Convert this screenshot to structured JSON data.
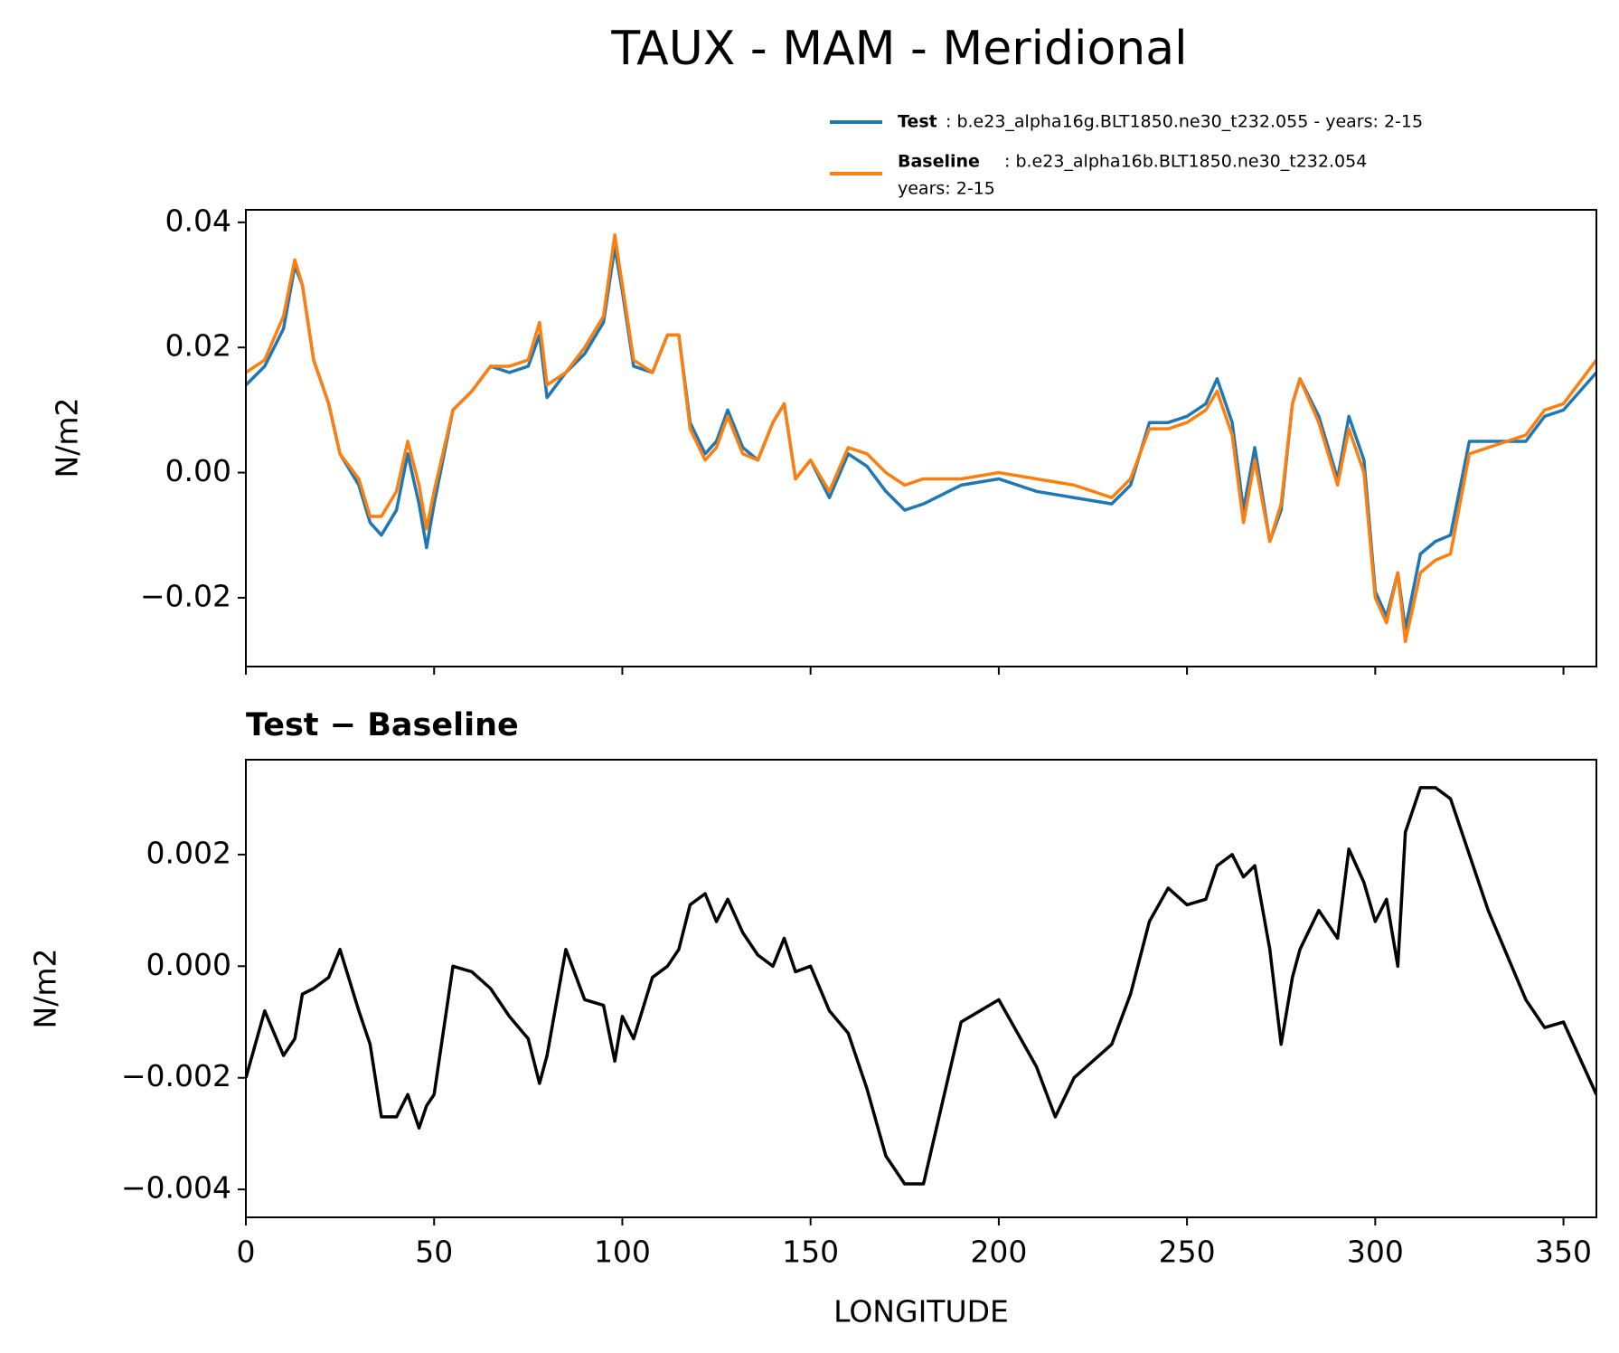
{
  "chart_data": [
    {
      "type": "line",
      "title": "TAUX - MAM - Meridional",
      "ylabel": "N/m2",
      "x": [
        0,
        5,
        10,
        13,
        15,
        18,
        22,
        25,
        30,
        33,
        36,
        40,
        43,
        46,
        48,
        50,
        55,
        60,
        65,
        70,
        75,
        78,
        80,
        85,
        90,
        95,
        98,
        100,
        103,
        108,
        112,
        115,
        118,
        122,
        125,
        128,
        132,
        136,
        140,
        143,
        146,
        150,
        155,
        160,
        165,
        170,
        175,
        180,
        190,
        200,
        210,
        220,
        230,
        235,
        240,
        245,
        250,
        255,
        258,
        262,
        265,
        268,
        272,
        275,
        278,
        280,
        285,
        290,
        293,
        297,
        300,
        303,
        306,
        308,
        312,
        316,
        320,
        325,
        330,
        340,
        345,
        350,
        358.75
      ],
      "series": [
        {
          "name": "Test",
          "description": [
            ": b.e23_alpha16g.BLT1850.ne30_t232.055 - years: 2-15"
          ],
          "color": "#1f77b4",
          "values": [
            0.014,
            0.017,
            0.023,
            0.033,
            0.03,
            0.018,
            0.011,
            0.003,
            -0.002,
            -0.008,
            -0.01,
            -0.006,
            0.003,
            -0.005,
            -0.012,
            -0.005,
            0.01,
            0.013,
            0.017,
            0.016,
            0.017,
            0.022,
            0.012,
            0.016,
            0.019,
            0.024,
            0.036,
            0.029,
            0.017,
            0.016,
            0.022,
            0.022,
            0.008,
            0.003,
            0.005,
            0.01,
            0.004,
            0.002,
            0.008,
            0.011,
            -0.001,
            0.002,
            -0.004,
            0.003,
            0.001,
            -0.003,
            -0.006,
            -0.005,
            -0.002,
            -0.001,
            -0.003,
            -0.004,
            -0.005,
            -0.002,
            0.008,
            0.008,
            0.009,
            0.011,
            0.015,
            0.008,
            -0.006,
            0.004,
            -0.011,
            -0.006,
            0.011,
            0.015,
            0.009,
            -0.001,
            0.009,
            0.002,
            -0.019,
            -0.023,
            -0.016,
            -0.025,
            -0.013,
            -0.011,
            -0.01,
            0.005,
            0.005,
            0.005,
            0.009,
            0.01,
            0.016
          ]
        },
        {
          "name": "Baseline",
          "description": [
            ": b.e23_alpha16b.BLT1850.ne30_t232.054",
            "years: 2-15"
          ],
          "color": "#ff7f0e",
          "values": [
            0.016,
            0.018,
            0.025,
            0.034,
            0.03,
            0.018,
            0.011,
            0.003,
            -0.001,
            -0.007,
            -0.007,
            -0.003,
            0.005,
            -0.002,
            -0.009,
            -0.003,
            0.01,
            0.013,
            0.017,
            0.017,
            0.018,
            0.024,
            0.014,
            0.016,
            0.02,
            0.025,
            0.038,
            0.03,
            0.018,
            0.016,
            0.022,
            0.022,
            0.007,
            0.002,
            0.004,
            0.009,
            0.003,
            0.002,
            0.008,
            0.011,
            -0.001,
            0.002,
            -0.003,
            0.004,
            0.003,
            0.0,
            -0.002,
            -0.001,
            -0.001,
            0.0,
            -0.001,
            -0.002,
            -0.004,
            -0.001,
            0.007,
            0.007,
            0.008,
            0.01,
            0.013,
            0.006,
            -0.008,
            0.002,
            -0.011,
            -0.005,
            0.011,
            0.015,
            0.008,
            -0.002,
            0.007,
            0.0,
            -0.02,
            -0.024,
            -0.016,
            -0.027,
            -0.016,
            -0.014,
            -0.013,
            0.003,
            0.004,
            0.006,
            0.01,
            0.011,
            0.018
          ]
        }
      ],
      "xlim": [
        0,
        358.75
      ],
      "xticks": [
        0,
        50,
        100,
        150,
        200,
        250,
        300,
        350
      ],
      "ylim": [
        -0.031,
        0.042
      ],
      "yticks": [
        {
          "value": -0.02,
          "label": "−0.02"
        },
        {
          "value": 0,
          "label": "0.00"
        },
        0.02,
        0.04
      ]
    },
    {
      "type": "line",
      "title": "Test − Baseline",
      "ylabel": "N/m2",
      "xlabel": "LONGITUDE",
      "x": [
        0,
        5,
        10,
        13,
        15,
        18,
        22,
        25,
        30,
        33,
        36,
        40,
        43,
        46,
        48,
        50,
        55,
        60,
        65,
        70,
        75,
        78,
        80,
        85,
        90,
        95,
        98,
        100,
        103,
        108,
        112,
        115,
        118,
        122,
        125,
        128,
        132,
        136,
        140,
        143,
        146,
        150,
        155,
        160,
        165,
        170,
        175,
        180,
        190,
        200,
        210,
        215,
        220,
        230,
        235,
        240,
        245,
        250,
        255,
        258,
        262,
        265,
        268,
        272,
        275,
        278,
        280,
        285,
        290,
        293,
        297,
        300,
        303,
        306,
        308,
        312,
        316,
        320,
        325,
        330,
        340,
        345,
        350,
        358.75
      ],
      "series": [
        {
          "color": "#000000",
          "values": [
            -0.002,
            -0.0008,
            -0.0016,
            -0.0013,
            -0.0005,
            -0.0004,
            -0.0002,
            0.0003,
            -0.0008,
            -0.0014,
            -0.0027,
            -0.0027,
            -0.0023,
            -0.0029,
            -0.0025,
            -0.0023,
            0.0,
            -0.0001,
            -0.0004,
            -0.0009,
            -0.0013,
            -0.0021,
            -0.0016,
            0.0003,
            -0.0006,
            -0.0007,
            -0.0017,
            -0.0009,
            -0.0013,
            -0.0002,
            0.0,
            0.0003,
            0.0011,
            0.0013,
            0.0008,
            0.0012,
            0.0006,
            0.0002,
            0.0,
            0.0005,
            -0.0001,
            0.0,
            -0.0008,
            -0.0012,
            -0.0022,
            -0.0034,
            -0.0039,
            -0.0039,
            -0.001,
            -0.0006,
            -0.0018,
            -0.0027,
            -0.002,
            -0.0014,
            -0.0005,
            0.0008,
            0.0014,
            0.0011,
            0.0012,
            0.0018,
            0.002,
            0.0016,
            0.0018,
            0.0003,
            -0.0014,
            -0.0002,
            0.0003,
            0.001,
            0.0005,
            0.0021,
            0.0015,
            0.0008,
            0.0012,
            0.0,
            0.0024,
            0.0032,
            0.0032,
            0.003,
            0.002,
            0.001,
            -0.0006,
            -0.0011,
            -0.001,
            -0.0023
          ]
        }
      ],
      "xlim": [
        0,
        358.75
      ],
      "xticks": [
        0,
        50,
        100,
        150,
        200,
        250,
        300,
        350
      ],
      "ylim": [
        -0.0045,
        0.0037
      ],
      "yticks": [
        {
          "value": -0.004,
          "label": "−0.004"
        },
        {
          "value": -0.002,
          "label": "−0.002"
        },
        {
          "value": 0,
          "label": "0.000"
        },
        0.002
      ]
    }
  ]
}
